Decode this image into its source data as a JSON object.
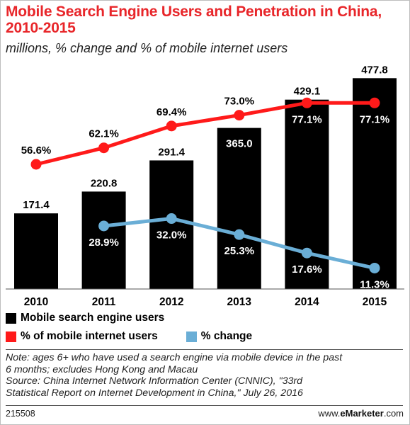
{
  "title": "Mobile Search Engine Users and Penetration in China, 2010-2015",
  "subtitle": "millions, % change and % of mobile internet users",
  "chart_data": {
    "type": "bar",
    "categories": [
      "2010",
      "2011",
      "2012",
      "2013",
      "2014",
      "2015"
    ],
    "series": [
      {
        "name": "Mobile search engine users",
        "type": "bar",
        "color": "#000000",
        "values": [
          171.4,
          220.8,
          291.4,
          365.0,
          429.1,
          477.8
        ],
        "labels": [
          "171.4",
          "220.8",
          "291.4",
          "365.0",
          "429.1",
          "477.8"
        ]
      },
      {
        "name": "% of mobile internet users",
        "type": "line",
        "color": "#ff1a1a",
        "values": [
          56.6,
          62.1,
          69.4,
          73.0,
          77.1,
          77.1
        ],
        "labels": [
          "56.6%",
          "62.1%",
          "69.4%",
          "73.0%",
          "77.1%",
          "77.1%"
        ]
      },
      {
        "name": "% change",
        "type": "line",
        "color": "#6aaed6",
        "values": [
          null,
          28.9,
          32.0,
          25.3,
          17.6,
          11.3
        ],
        "labels": [
          "",
          "28.9%",
          "32.0%",
          "25.3%",
          "17.6%",
          "11.3%"
        ]
      }
    ]
  },
  "legend": {
    "users": "Mobile search engine users",
    "penetration": "% of mobile internet users",
    "change": "% change"
  },
  "note_lines": [
    "Note: ages 6+ who have used a search engine via mobile device in the past",
    "6 months; excludes Hong Kong and Macau",
    "Source: China Internet Network Information Center (CNNIC), \"33rd",
    "Statistical Report on Internet Development in China,\" July 26, 2016"
  ],
  "footer": {
    "id": "215508",
    "site_prefix": "www.",
    "site_brand": "eMarketer",
    "site_suffix": ".com"
  }
}
